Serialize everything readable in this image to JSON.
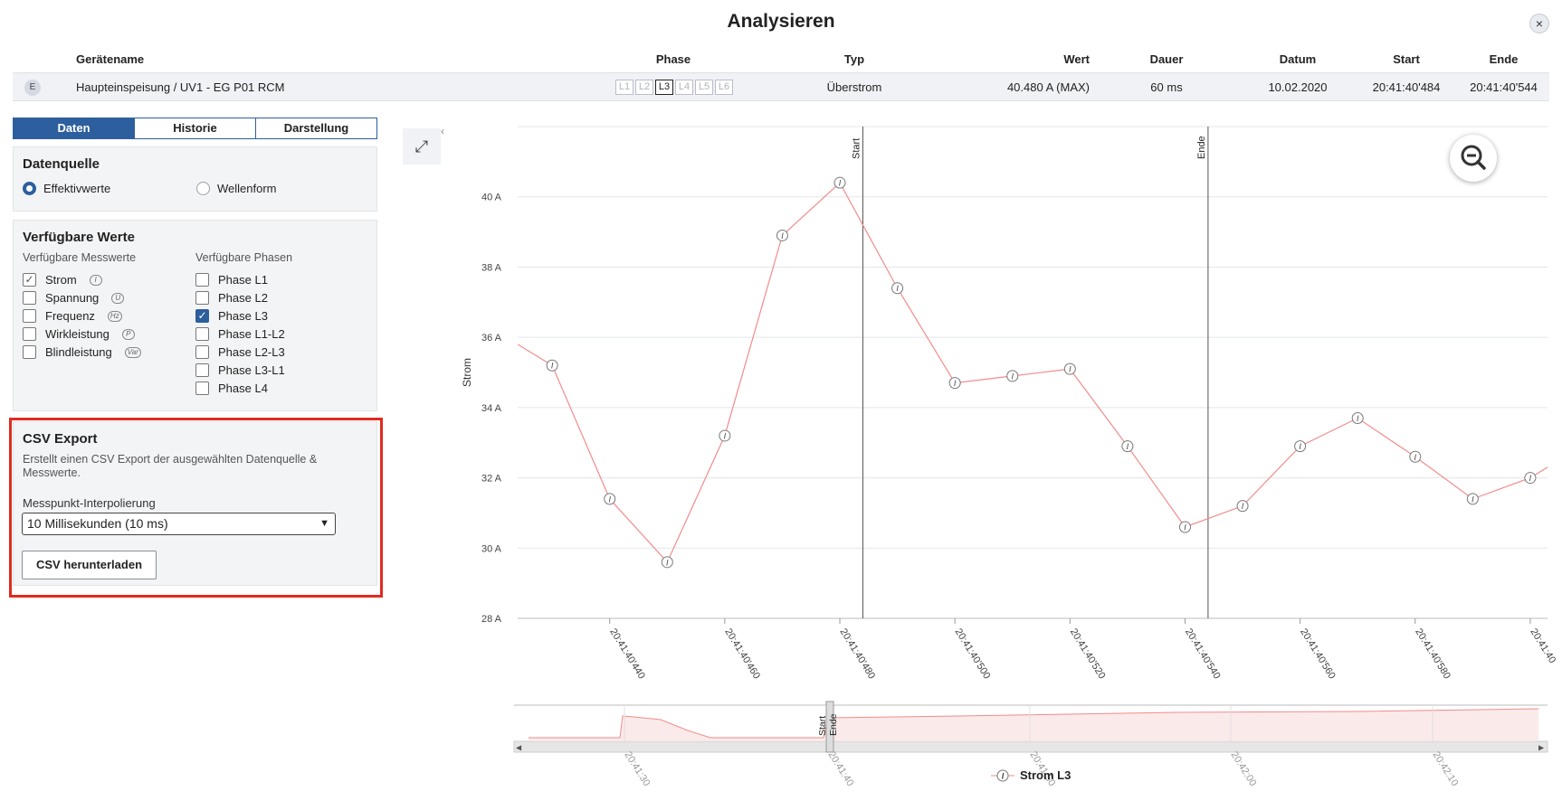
{
  "title": "Analysieren",
  "close_label": "×",
  "table": {
    "headers": [
      "Gerätename",
      "Phase",
      "Typ",
      "Wert",
      "Dauer",
      "Datum",
      "Start",
      "Ende"
    ],
    "row": {
      "badge": "E",
      "name": "Haupteinspeisung / UV1 - EG P01 RCM",
      "phases": [
        "L1",
        "L2",
        "L3",
        "L4",
        "L5",
        "L6"
      ],
      "active_phase": "L3",
      "typ": "Überstrom",
      "wert": "40.480 A (MAX)",
      "dauer": "60 ms",
      "datum": "10.02.2020",
      "start": "20:41:40'484",
      "ende": "20:41:40'544"
    }
  },
  "tabs": [
    "Daten",
    "Historie",
    "Darstellung"
  ],
  "active_tab": "Daten",
  "datenquelle": {
    "title": "Datenquelle",
    "options": [
      "Effektivwerte",
      "Wellenform"
    ],
    "selected": "Effektivwerte"
  },
  "verfuegbare_werte": {
    "title": "Verfügbare Werte",
    "messwerte_label": "Verfügbare Messwerte",
    "phasen_label": "Verfügbare Phasen",
    "messwerte": [
      {
        "label": "Strom",
        "icon": "I",
        "checked": true
      },
      {
        "label": "Spannung",
        "icon": "U",
        "checked": false
      },
      {
        "label": "Frequenz",
        "icon": "Hz",
        "checked": false
      },
      {
        "label": "Wirkleistung",
        "icon": "P",
        "checked": false
      },
      {
        "label": "Blindleistung",
        "icon": "Var",
        "checked": false
      }
    ],
    "phasen": [
      {
        "label": "Phase L1",
        "checked": false
      },
      {
        "label": "Phase L2",
        "checked": false
      },
      {
        "label": "Phase L3",
        "checked": true
      },
      {
        "label": "Phase L1-L2",
        "checked": false
      },
      {
        "label": "Phase L2-L3",
        "checked": false
      },
      {
        "label": "Phase L3-L1",
        "checked": false
      },
      {
        "label": "Phase L4",
        "checked": false
      }
    ]
  },
  "csv_export": {
    "title": "CSV Export",
    "description": "Erstellt einen CSV Export der ausgewählten Datenquelle & Messwerte.",
    "interp_label": "Messpunkt-Interpolierung",
    "interp_value": "10 Millisekunden (10 ms)",
    "button_label": "CSV herunterladen"
  },
  "colors": {
    "accent": "#2d5f9e",
    "series": "#f28b8b",
    "highlight": "#e02b20"
  },
  "chart_data": {
    "type": "line",
    "ylabel": "Strom",
    "ylim": [
      28,
      42
    ],
    "yticks": [
      "28 A",
      "30 A",
      "32 A",
      "34 A",
      "36 A",
      "38 A",
      "40 A"
    ],
    "ytick_values": [
      28,
      30,
      32,
      34,
      36,
      38,
      40
    ],
    "xticks": [
      "20:41:40'440",
      "20:41:40'460",
      "20:41:40'480",
      "20:41:40'500",
      "20:41:40'520",
      "20:41:40'540",
      "20:41:40'560",
      "20:41:40'580",
      "20:41:40"
    ],
    "xtick_values": [
      440,
      460,
      480,
      500,
      520,
      540,
      560,
      580,
      600
    ],
    "xlim": [
      424,
      603
    ],
    "markers": [
      {
        "label": "Start",
        "x": 484
      },
      {
        "label": "Ende",
        "x": 544
      }
    ],
    "series": [
      {
        "name": "Strom L3",
        "marker": "I",
        "x": [
          424,
          430,
          440,
          450,
          460,
          470,
          480,
          490,
          500,
          510,
          520,
          530,
          540,
          550,
          560,
          570,
          580,
          590,
          600,
          603
        ],
        "y": [
          35.8,
          35.2,
          31.4,
          29.6,
          33.2,
          38.9,
          40.4,
          37.4,
          34.7,
          34.9,
          35.1,
          32.9,
          30.6,
          31.2,
          32.9,
          33.7,
          32.6,
          31.4,
          32.0,
          32.3
        ]
      }
    ],
    "overview": {
      "xticks": [
        "20:41:30",
        "20:41:40",
        "20:41:50",
        "20:42:00",
        "20:42:10"
      ],
      "markers": [
        "Start",
        "Ende"
      ]
    },
    "legend": "Strom L3"
  }
}
